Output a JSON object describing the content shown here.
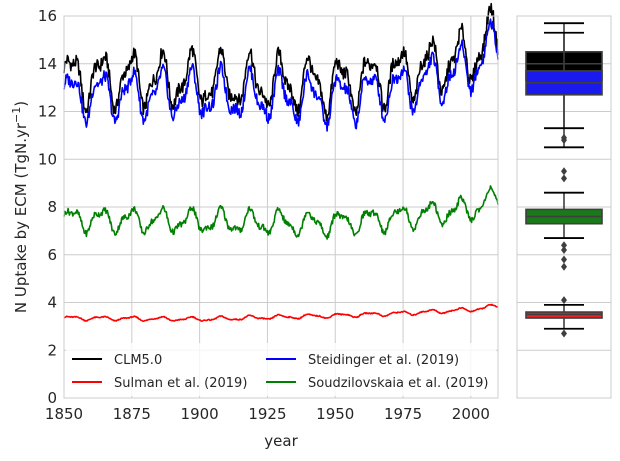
{
  "chart_data": [
    {
      "type": "line",
      "title": "",
      "xlabel": "year",
      "ylabel": "N Uptake by ECM (TgN.yr",
      "ylabel_sup": "−1",
      "ylabel_close": ")",
      "xlim": [
        1850,
        2010
      ],
      "ylim": [
        0,
        16
      ],
      "xticks": [
        1850,
        1875,
        1900,
        1925,
        1950,
        1975,
        2000
      ],
      "yticks": [
        0,
        2,
        4,
        6,
        8,
        10,
        12,
        14,
        16
      ],
      "grid": true,
      "legend_position": "lower-left, two columns",
      "series": [
        {
          "name": "CLM5.0",
          "color": "#000000",
          "trend": [
            [
              1850,
              13.4
            ],
            [
              1900,
              13.3
            ],
            [
              1950,
              13.1
            ],
            [
              1975,
              13.6
            ],
            [
              2000,
              14.3
            ],
            [
              2010,
              15.3
            ]
          ],
          "seasonal_amplitude": 1.6,
          "cycle_years": 11
        },
        {
          "name": "Sulman et al. (2019)",
          "color": "#ff0000",
          "trend": [
            [
              1850,
              3.35
            ],
            [
              1900,
              3.3
            ],
            [
              1950,
              3.45
            ],
            [
              1975,
              3.55
            ],
            [
              2000,
              3.7
            ],
            [
              2010,
              3.85
            ]
          ],
          "seasonal_amplitude": 0.12,
          "cycle_years": 11
        },
        {
          "name": "Steidinger et al. (2019)",
          "color": "#0000ff",
          "trend": [
            [
              1850,
              12.7
            ],
            [
              1900,
              12.7
            ],
            [
              1950,
              12.5
            ],
            [
              1975,
              13.0
            ],
            [
              2000,
              13.8
            ],
            [
              2010,
              14.9
            ]
          ],
          "seasonal_amplitude": 1.4,
          "cycle_years": 11
        },
        {
          "name": "Soudzilovskaia et al. (2019)",
          "color": "#008000",
          "trend": [
            [
              1850,
              7.5
            ],
            [
              1900,
              7.4
            ],
            [
              1950,
              7.3
            ],
            [
              1975,
              7.6
            ],
            [
              2000,
              7.9
            ],
            [
              2010,
              8.4
            ]
          ],
          "seasonal_amplitude": 0.7,
          "cycle_years": 11
        }
      ]
    },
    {
      "type": "box",
      "title": "",
      "ylim": [
        0,
        16
      ],
      "grid": true,
      "boxes": [
        {
          "series": "CLM5.0",
          "color": "#000000",
          "q1": 13.3,
          "median": 14.0,
          "q3": 14.5,
          "whisker_low": 10.5,
          "whisker_high": 15.7
        },
        {
          "series": "Steidinger et al. (2019)",
          "color": "#1a1aee",
          "q1": 12.7,
          "median": 13.2,
          "q3": 13.7,
          "whisker_low": 11.3,
          "whisker_high": 15.3,
          "outliers": [
            10.9,
            10.8
          ]
        },
        {
          "series": "Soudzilovskaia et al. (2019)",
          "color": "#1a7a1a",
          "q1": 7.3,
          "median": 7.6,
          "q3": 7.9,
          "whisker_low": 6.7,
          "whisker_high": 8.6,
          "outliers": [
            9.5,
            9.2,
            6.4,
            6.2,
            5.8,
            5.5
          ]
        },
        {
          "series": "Sulman et al. (2019)",
          "color": "#ee2222",
          "q1": 3.35,
          "median": 3.5,
          "q3": 3.6,
          "whisker_low": 2.9,
          "whisker_high": 3.9,
          "outliers": [
            4.1,
            2.7
          ]
        }
      ]
    }
  ]
}
